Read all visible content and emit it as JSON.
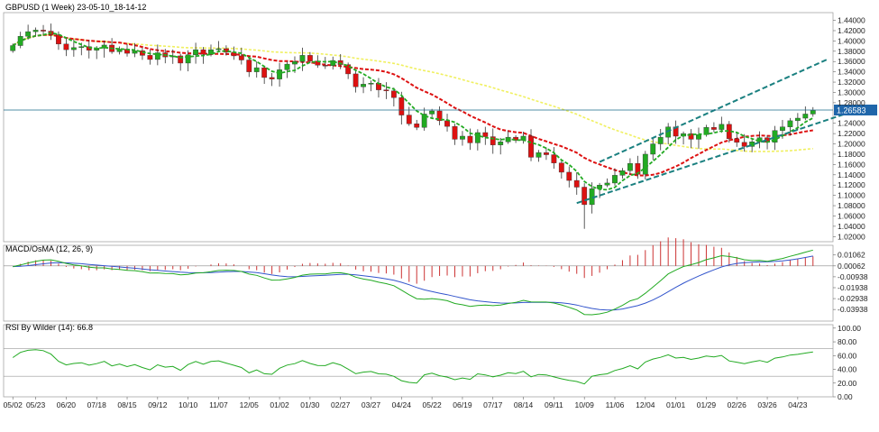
{
  "chart_data": {
    "type": "candlestick",
    "symbol_title": "GBPUSD (1 Week) 23-05-10_18-14-12",
    "current_price_label": "1.26583",
    "current_price": 1.26583,
    "main": {
      "ylim": [
        1.01,
        1.455
      ],
      "y_ticks": [
        "1.44000",
        "1.42000",
        "1.40000",
        "1.38000",
        "1.36000",
        "1.34000",
        "1.32000",
        "1.30000",
        "1.28000",
        "1.26000",
        "1.24000",
        "1.22000",
        "1.20000",
        "1.18000",
        "1.16000",
        "1.14000",
        "1.12000",
        "1.10000",
        "1.08000",
        "1.06000",
        "1.04000",
        "1.02000"
      ],
      "y_tick_values": [
        1.44,
        1.42,
        1.4,
        1.38,
        1.36,
        1.34,
        1.32,
        1.3,
        1.28,
        1.26,
        1.24,
        1.22,
        1.2,
        1.18,
        1.16,
        1.14,
        1.12,
        1.1,
        1.08,
        1.06,
        1.04,
        1.02
      ],
      "close_series": [
        1.391,
        1.409,
        1.418,
        1.421,
        1.419,
        1.412,
        1.394,
        1.383,
        1.387,
        1.389,
        1.382,
        1.386,
        1.392,
        1.379,
        1.384,
        1.376,
        1.381,
        1.372,
        1.364,
        1.377,
        1.369,
        1.371,
        1.357,
        1.373,
        1.383,
        1.374,
        1.383,
        1.385,
        1.378,
        1.371,
        1.363,
        1.34,
        1.348,
        1.329,
        1.326,
        1.344,
        1.355,
        1.36,
        1.372,
        1.361,
        1.353,
        1.352,
        1.362,
        1.354,
        1.336,
        1.311,
        1.316,
        1.318,
        1.305,
        1.303,
        1.29,
        1.256,
        1.239,
        1.232,
        1.258,
        1.264,
        1.245,
        1.234,
        1.209,
        1.215,
        1.202,
        1.222,
        1.214,
        1.198,
        1.204,
        1.213,
        1.207,
        1.215,
        1.174,
        1.183,
        1.179,
        1.163,
        1.145,
        1.129,
        1.116,
        1.082,
        1.113,
        1.12,
        1.124,
        1.139,
        1.148,
        1.162,
        1.141,
        1.18,
        1.2,
        1.213,
        1.233,
        1.215,
        1.22,
        1.209,
        1.218,
        1.232,
        1.228,
        1.238,
        1.21,
        1.203,
        1.195,
        1.204,
        1.212,
        1.203,
        1.226,
        1.233,
        1.245,
        1.25,
        1.258,
        1.265
      ],
      "ma_fast_color": "#22aa22",
      "ma_mid_color": "#dd1111",
      "ma_slow_color": "#f0f060",
      "channel_color": "#1a8080",
      "bull_color": "#22aa22",
      "bear_color": "#dd1111"
    },
    "macd": {
      "label": "MACD/OsMA (12, 26, 9)",
      "ylim": [
        -0.05,
        0.0195
      ],
      "y_ticks": [
        "0.01062",
        "0.00062",
        "-0.00938",
        "-0.01938",
        "-0.02938",
        "-0.03938"
      ],
      "y_tick_values": [
        0.01062,
        0.00062,
        -0.00938,
        -0.01938,
        -0.02938,
        -0.03938
      ],
      "macd_color": "#22aa22",
      "signal_color": "#3355cc",
      "osma_color": "#cc3333"
    },
    "rsi": {
      "label": "RSI By Wilder (14): 66.8",
      "ylim": [
        0,
        105
      ],
      "y_ticks": [
        "100.00",
        "80.00",
        "60.00",
        "40.00",
        "20.00",
        "0.00"
      ],
      "y_tick_values": [
        100,
        80,
        60,
        40,
        20,
        0
      ],
      "levels": [
        70,
        30
      ],
      "line_color": "#22aa22"
    },
    "x_tick_labels": [
      "05/02",
      "05/23",
      "06/20",
      "07/18",
      "08/15",
      "09/12",
      "10/10",
      "11/07",
      "12/05",
      "01/02",
      "01/30",
      "02/27",
      "03/27",
      "04/24",
      "05/22",
      "06/19",
      "07/17",
      "08/14",
      "09/11",
      "10/09",
      "11/06",
      "12/04",
      "01/01",
      "01/29",
      "02/26",
      "03/26",
      "04/23"
    ],
    "x_tick_bar_index": [
      0,
      3,
      7,
      11,
      15,
      19,
      23,
      27,
      31,
      35,
      39,
      43,
      47,
      51,
      55,
      59,
      63,
      67,
      71,
      75,
      79,
      83,
      87,
      91,
      95,
      99,
      103
    ]
  }
}
